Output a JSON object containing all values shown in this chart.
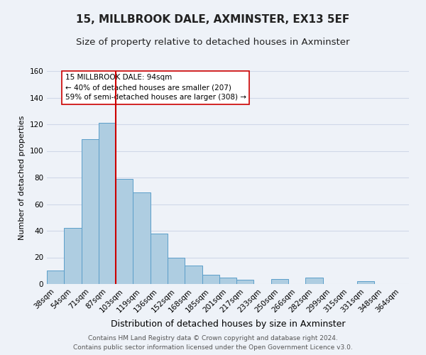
{
  "title": "15, MILLBROOK DALE, AXMINSTER, EX13 5EF",
  "subtitle": "Size of property relative to detached houses in Axminster",
  "xlabel": "Distribution of detached houses by size in Axminster",
  "ylabel": "Number of detached properties",
  "bar_labels": [
    "38sqm",
    "54sqm",
    "71sqm",
    "87sqm",
    "103sqm",
    "119sqm",
    "136sqm",
    "152sqm",
    "168sqm",
    "185sqm",
    "201sqm",
    "217sqm",
    "233sqm",
    "250sqm",
    "266sqm",
    "282sqm",
    "299sqm",
    "315sqm",
    "331sqm",
    "348sqm",
    "364sqm"
  ],
  "bar_values": [
    10,
    42,
    109,
    121,
    79,
    69,
    38,
    20,
    14,
    7,
    5,
    3,
    0,
    4,
    0,
    5,
    0,
    0,
    2,
    0,
    0
  ],
  "bar_color": "#aecde1",
  "bar_edge_color": "#5b9ec9",
  "ylim": [
    0,
    160
  ],
  "yticks": [
    0,
    20,
    40,
    60,
    80,
    100,
    120,
    140,
    160
  ],
  "vline_x": 3.5,
  "property_line_label": "15 MILLBROOK DALE: 94sqm",
  "annotation_line1": "← 40% of detached houses are smaller (207)",
  "annotation_line2": "59% of semi-detached houses are larger (308) →",
  "vline_color": "#cc0000",
  "grid_color": "#d0d8e8",
  "background_color": "#eef2f8",
  "footer_line1": "Contains HM Land Registry data © Crown copyright and database right 2024.",
  "footer_line2": "Contains public sector information licensed under the Open Government Licence v3.0.",
  "title_fontsize": 11,
  "subtitle_fontsize": 9.5,
  "xlabel_fontsize": 9,
  "ylabel_fontsize": 8,
  "tick_fontsize": 7.5,
  "annot_fontsize": 7.5,
  "footer_fontsize": 6.5
}
